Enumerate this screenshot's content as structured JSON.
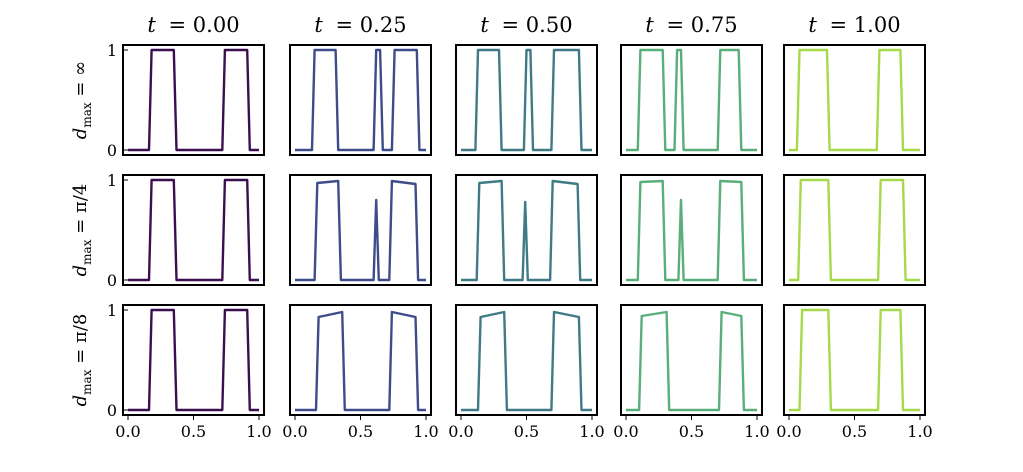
{
  "chart_data": {
    "type": "line",
    "layout": "small-multiples 3x5",
    "grid": false,
    "columns": [
      {
        "t_label": "t",
        "value_label": "= 0.00",
        "color": "#3b0f4f"
      },
      {
        "t_label": "t",
        "value_label": "= 0.25",
        "color": "#3f4c8a"
      },
      {
        "t_label": "t",
        "value_label": "= 0.50",
        "color": "#3f7a86"
      },
      {
        "t_label": "t",
        "value_label": "= 0.75",
        "color": "#5aae7a"
      },
      {
        "t_label": "t",
        "value_label": "= 1.00",
        "color": "#a6d94e"
      }
    ],
    "rows": [
      {
        "d_label": "d",
        "sub_label": "max",
        "value_label": "= ∞"
      },
      {
        "d_label": "d",
        "sub_label": "max",
        "value_label": "= π/4"
      },
      {
        "d_label": "d",
        "sub_label": "max",
        "value_label": "= π/8"
      }
    ],
    "xlim": [
      0,
      1
    ],
    "ylim": [
      0,
      1
    ],
    "x_ticks": [
      "0.0",
      "0.5",
      "1.0"
    ],
    "y_ticks": [
      "0",
      "1"
    ],
    "panels": [
      [
        {
          "x": [
            0,
            0.16,
            0.18,
            0.35,
            0.37,
            0.72,
            0.74,
            0.91,
            0.93,
            1
          ],
          "y": [
            0,
            0,
            1,
            1,
            0,
            0,
            1,
            1,
            0,
            0
          ]
        },
        {
          "x": [
            0,
            0.13,
            0.15,
            0.31,
            0.33,
            0.6,
            0.62,
            0.65,
            0.67,
            0.74,
            0.76,
            0.93,
            0.95,
            1
          ],
          "y": [
            0,
            0,
            1,
            1,
            0,
            0,
            1,
            1,
            0,
            0,
            1,
            1,
            0,
            0
          ]
        },
        {
          "x": [
            0,
            0.11,
            0.13,
            0.29,
            0.31,
            0.48,
            0.5,
            0.53,
            0.55,
            0.69,
            0.71,
            0.9,
            0.92,
            1
          ],
          "y": [
            0,
            0,
            1,
            1,
            0,
            0,
            1,
            1,
            0,
            0,
            1,
            1,
            0,
            0
          ]
        },
        {
          "x": [
            0,
            0.09,
            0.11,
            0.28,
            0.3,
            0.37,
            0.39,
            0.42,
            0.44,
            0.7,
            0.72,
            0.86,
            0.88,
            1
          ],
          "y": [
            0,
            0,
            1,
            1,
            0,
            0,
            1,
            1,
            0,
            0,
            1,
            1,
            0,
            0
          ]
        },
        {
          "x": [
            0,
            0.06,
            0.08,
            0.29,
            0.31,
            0.67,
            0.69,
            0.85,
            0.87,
            1
          ],
          "y": [
            0,
            0,
            1,
            1,
            0,
            0,
            1,
            1,
            0,
            0
          ]
        }
      ],
      [
        {
          "x": [
            0,
            0.16,
            0.18,
            0.35,
            0.37,
            0.72,
            0.74,
            0.91,
            0.93,
            1
          ],
          "y": [
            0,
            0,
            1,
            1,
            0,
            0,
            1,
            1,
            0,
            0
          ]
        },
        {
          "x": [
            0,
            0.15,
            0.17,
            0.33,
            0.35,
            0.6,
            0.62,
            0.64,
            0.72,
            0.74,
            0.92,
            0.94,
            1
          ],
          "y": [
            0,
            0,
            0.97,
            0.99,
            0,
            0,
            0.8,
            0,
            0,
            0.99,
            0.96,
            0,
            0
          ]
        },
        {
          "x": [
            0,
            0.12,
            0.14,
            0.31,
            0.33,
            0.47,
            0.49,
            0.51,
            0.68,
            0.7,
            0.89,
            0.91,
            1
          ],
          "y": [
            0,
            0,
            0.97,
            0.99,
            0,
            0,
            0.78,
            0,
            0,
            0.99,
            0.96,
            0,
            0
          ]
        },
        {
          "x": [
            0,
            0.09,
            0.11,
            0.28,
            0.3,
            0.4,
            0.42,
            0.44,
            0.7,
            0.72,
            0.88,
            0.9,
            1
          ],
          "y": [
            0,
            0,
            0.98,
            0.99,
            0,
            0,
            0.8,
            0,
            0,
            0.99,
            0.98,
            0,
            0
          ]
        },
        {
          "x": [
            0,
            0.07,
            0.09,
            0.3,
            0.32,
            0.68,
            0.7,
            0.87,
            0.89,
            1
          ],
          "y": [
            0,
            0,
            1,
            1,
            0,
            0,
            1,
            1,
            0,
            0
          ]
        }
      ],
      [
        {
          "x": [
            0,
            0.16,
            0.18,
            0.35,
            0.37,
            0.72,
            0.74,
            0.91,
            0.93,
            1
          ],
          "y": [
            0,
            0,
            1,
            1,
            0,
            0,
            1,
            1,
            0,
            0
          ]
        },
        {
          "x": [
            0,
            0.16,
            0.18,
            0.36,
            0.38,
            0.72,
            0.74,
            0.92,
            0.94,
            1
          ],
          "y": [
            0,
            0,
            0.93,
            0.98,
            0,
            0,
            0.98,
            0.93,
            0,
            0
          ]
        },
        {
          "x": [
            0,
            0.13,
            0.15,
            0.33,
            0.35,
            0.69,
            0.71,
            0.9,
            0.92,
            1
          ],
          "y": [
            0,
            0,
            0.93,
            0.98,
            0,
            0,
            0.98,
            0.93,
            0,
            0
          ]
        },
        {
          "x": [
            0,
            0.1,
            0.12,
            0.31,
            0.33,
            0.71,
            0.73,
            0.88,
            0.9,
            1
          ],
          "y": [
            0,
            0,
            0.94,
            0.98,
            0,
            0,
            0.98,
            0.94,
            0,
            0
          ]
        },
        {
          "x": [
            0,
            0.08,
            0.1,
            0.3,
            0.32,
            0.68,
            0.7,
            0.85,
            0.87,
            1
          ],
          "y": [
            0,
            0,
            1,
            1,
            0,
            0,
            1,
            1,
            0,
            0
          ]
        }
      ]
    ]
  }
}
